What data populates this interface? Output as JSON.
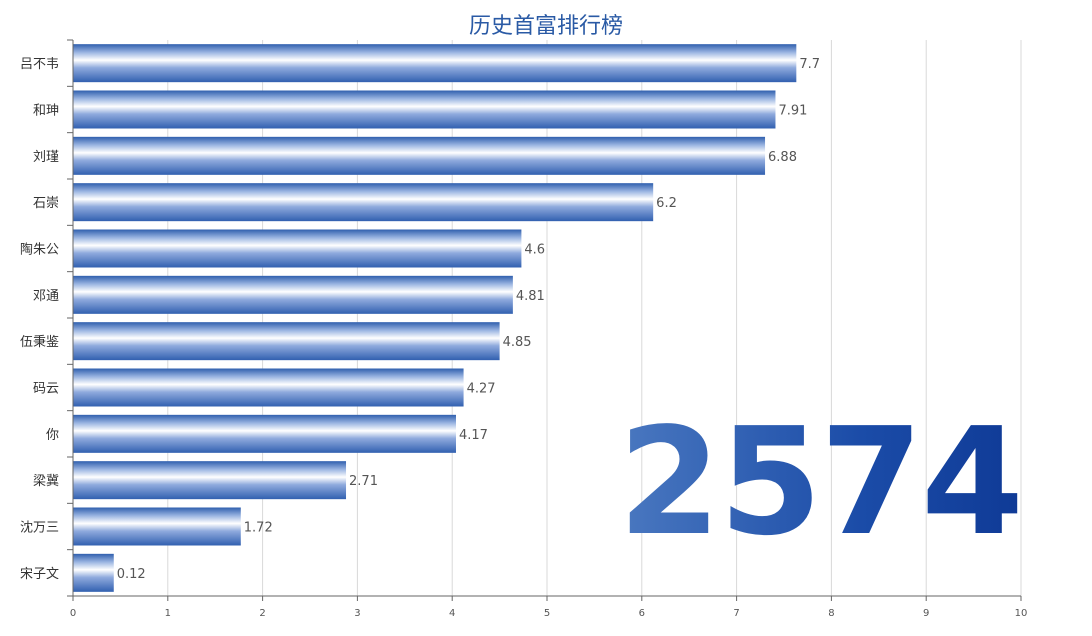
{
  "chart_data": {
    "type": "bar",
    "orientation": "horizontal",
    "title": "历史首富排行榜",
    "categories": [
      "吕不韦",
      "和珅",
      "刘瑾",
      "石崇",
      "陶朱公",
      "邓通",
      "伍秉鉴",
      "码云",
      "你",
      "梁冀",
      "沈万三",
      "宋子文"
    ],
    "values": [
      7.7,
      7.91,
      6.88,
      6.2,
      4.6,
      4.81,
      4.85,
      4.27,
      4.17,
      2.71,
      1.72,
      0.12
    ],
    "bar_lengths": [
      7.63,
      7.41,
      7.3,
      6.12,
      4.73,
      4.64,
      4.5,
      4.12,
      4.04,
      2.88,
      1.77,
      0.43
    ],
    "xlim": [
      0,
      10
    ],
    "xticks": [
      "0",
      "1",
      "2",
      "3",
      "4",
      "5",
      "6",
      "7",
      "8",
      "9",
      "10"
    ],
    "grid": true,
    "bar_color": "#3c6fbf",
    "counter": "2574"
  }
}
